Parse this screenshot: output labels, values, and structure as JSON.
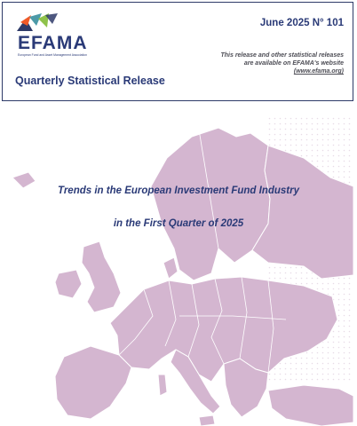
{
  "header": {
    "logo_name": "EFAMA",
    "logo_tagline": "European Fund and Asset Management Association",
    "release_title": "Quarterly Statistical Release",
    "issue_line": "June 2025 N° 101",
    "availability_note": "This release and other statistical releases are available on EFAMA's website",
    "website_link": "(www.efama.org)",
    "logo_colors": [
      "#f05a28",
      "#2e3a68",
      "#4c9aa8",
      "#8fc24a"
    ]
  },
  "cover": {
    "headline_line1": "Trends in the European Investment Fund Industry",
    "headline_line2": "in the First Quarter of 2025",
    "map_color": "#d4b6d0",
    "map_border_color": "#ffffff"
  }
}
